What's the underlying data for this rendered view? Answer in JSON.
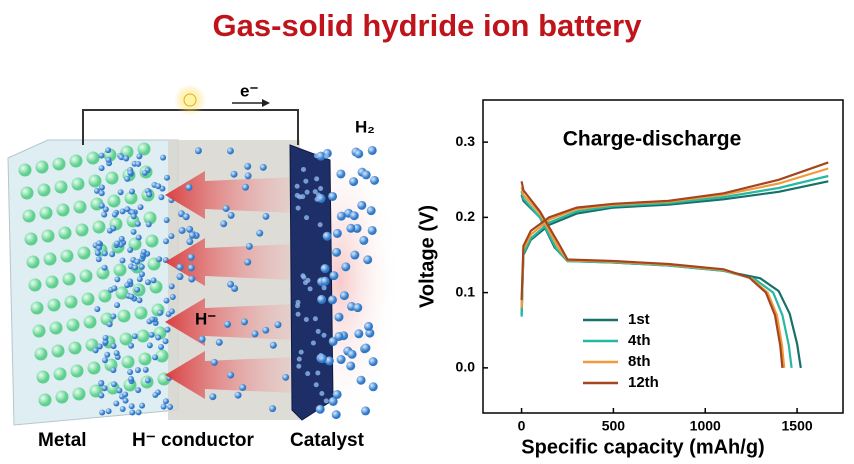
{
  "header": {
    "title": "Gas-solid hydride ion battery"
  },
  "illustration": {
    "metal": "Metal",
    "conductor": "H⁻ conductor",
    "catalyst": "Catalyst",
    "gas": "H₂",
    "electron": "e⁻",
    "ion": "H⁻"
  },
  "chart_data": {
    "type": "line",
    "title": "Charge-discharge",
    "x_label": "Specific capacity (mAh/g)",
    "y_label": "Voltage (V)",
    "xlim": [
      -210,
      1750
    ],
    "ylim": [
      -0.06,
      0.356
    ],
    "xticks": [
      0,
      500,
      1000,
      1500
    ],
    "yticks": [
      {
        "value": 0,
        "label": "0.0"
      },
      0.1,
      0.2,
      0.3
    ],
    "legend": "bottom-center",
    "series": [
      {
        "name": "1st",
        "color": "#17706a",
        "x": [
          0,
          10,
          100,
          180,
          250,
          500,
          800,
          1100,
          1300,
          1400,
          1460,
          1500,
          1520,
          null,
          0,
          10,
          50,
          150,
          300,
          500,
          800,
          1100,
          1400,
          1670
        ],
        "values": [
          0.23,
          0.222,
          0.2,
          0.16,
          0.142,
          0.14,
          0.136,
          0.129,
          0.119,
          0.102,
          0.072,
          0.032,
          0,
          null,
          0.07,
          0.15,
          0.17,
          0.19,
          0.205,
          0.213,
          0.217,
          0.224,
          0.234,
          0.248
        ]
      },
      {
        "name": "4th",
        "color": "#27b8a2",
        "x": [
          0,
          10,
          100,
          190,
          250,
          500,
          800,
          1100,
          1270,
          1370,
          1420,
          1455,
          1470,
          null,
          0,
          10,
          50,
          150,
          300,
          500,
          800,
          1100,
          1400,
          1670
        ],
        "values": [
          0.235,
          0.225,
          0.2,
          0.158,
          0.142,
          0.14,
          0.136,
          0.129,
          0.118,
          0.1,
          0.07,
          0.03,
          0,
          null,
          0.068,
          0.152,
          0.172,
          0.193,
          0.208,
          0.215,
          0.219,
          0.227,
          0.239,
          0.255
        ]
      },
      {
        "name": "8th",
        "color": "#f29a3b",
        "x": [
          0,
          10,
          100,
          200,
          250,
          500,
          800,
          1100,
          1250,
          1340,
          1390,
          1418,
          1430,
          null,
          0,
          10,
          50,
          150,
          300,
          500,
          800,
          1100,
          1400,
          1670
        ],
        "values": [
          0.24,
          0.23,
          0.205,
          0.16,
          0.143,
          0.141,
          0.137,
          0.13,
          0.119,
          0.1,
          0.07,
          0.03,
          0,
          null,
          0.08,
          0.157,
          0.177,
          0.197,
          0.211,
          0.217,
          0.221,
          0.23,
          0.245,
          0.265
        ]
      },
      {
        "name": "12th",
        "color": "#a3461f",
        "x": [
          0,
          10,
          100,
          210,
          250,
          500,
          800,
          1100,
          1240,
          1330,
          1380,
          1408,
          1420,
          null,
          0,
          10,
          50,
          150,
          300,
          500,
          800,
          1100,
          1400,
          1670
        ],
        "values": [
          0.248,
          0.236,
          0.208,
          0.162,
          0.144,
          0.142,
          0.138,
          0.131,
          0.12,
          0.1,
          0.07,
          0.03,
          0,
          null,
          0.09,
          0.162,
          0.182,
          0.2,
          0.213,
          0.218,
          0.222,
          0.232,
          0.25,
          0.273
        ]
      }
    ]
  }
}
